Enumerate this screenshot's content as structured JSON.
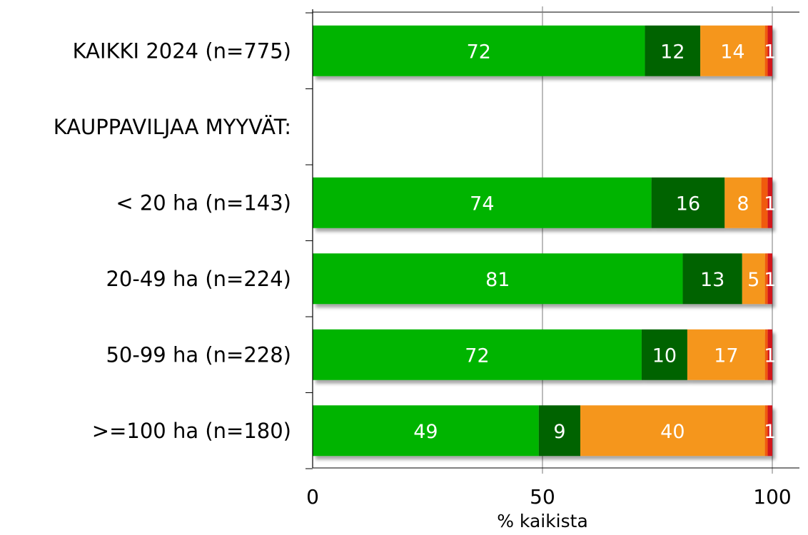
{
  "chart_data": {
    "type": "bar",
    "orientation": "horizontal",
    "stacked": true,
    "categories": [
      "KAIKKI 2024 (n=775)",
      "KAUPPAVILJAA MYYVÄT:",
      "< 20 ha (n=143)",
      "20-49 ha (n=224)",
      "50-99 ha (n=228)",
      ">=100 ha (n=180)"
    ],
    "series": [
      {
        "color": "#00b400",
        "values": [
          72,
          null,
          74,
          81,
          72,
          49
        ],
        "labels": [
          "72",
          "",
          "74",
          "81",
          "72",
          "49"
        ]
      },
      {
        "color": "#006400",
        "values": [
          12,
          null,
          16,
          13,
          10,
          9
        ],
        "labels": [
          "12",
          "",
          "16",
          "13",
          "10",
          "9"
        ]
      },
      {
        "color": "#f5961e",
        "values": [
          14,
          null,
          8,
          5,
          17,
          40
        ],
        "labels": [
          "14",
          "",
          "8",
          "5",
          "17",
          "40"
        ]
      },
      {
        "color": "#f05a0a",
        "values": [
          0.6,
          null,
          1.4,
          0.6,
          0.6,
          0.6
        ],
        "labels": [
          "",
          "",
          "",
          "",
          "",
          ""
        ]
      },
      {
        "color": "#d2141e",
        "values": [
          1,
          null,
          1,
          1,
          1,
          1
        ],
        "labels": [
          "1",
          "",
          "1",
          "1",
          "1",
          "1"
        ]
      }
    ],
    "xlim": [
      0,
      100
    ],
    "xticks": [
      "0",
      "50",
      "100"
    ],
    "xlabel": "% kaikista",
    "ylabel": "",
    "title": "",
    "grid": true,
    "legend": "none"
  }
}
